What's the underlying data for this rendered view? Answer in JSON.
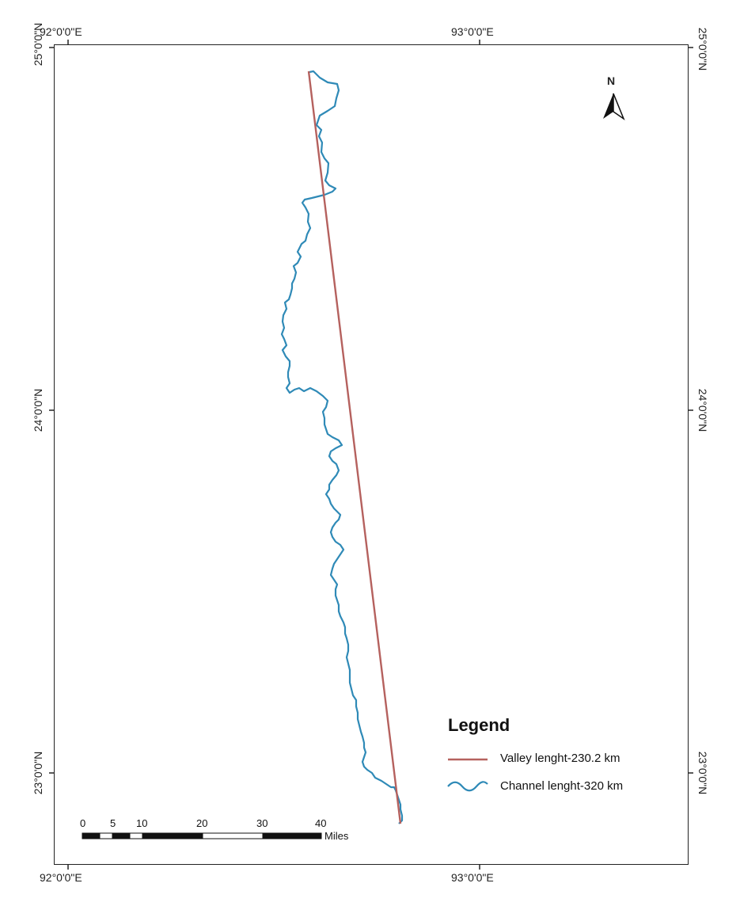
{
  "graticule": {
    "top_left": "92°0'0\"E",
    "top_right": "93°0'0\"E",
    "bottom_left": "92°0'0\"E",
    "bottom_right": "93°0'0\"E",
    "left_top": "25°0'0\"N",
    "left_mid": "24°0'0\"N",
    "left_bottom": "23°0'0\"N",
    "right_top": "25°0'0\"N",
    "right_mid": "24°0'0\"N",
    "right_bottom": "23°0'0\"N"
  },
  "north_arrow": {
    "label": "N",
    "icon": "north-arrow-icon"
  },
  "legend": {
    "title": "Legend",
    "items": [
      {
        "label": "Valley lenght-230.2 km",
        "color": "#b5615e",
        "symbol": "straight-line"
      },
      {
        "label": "Channel lenght-320 km",
        "color": "#2f8ab7",
        "symbol": "wavy-line"
      }
    ]
  },
  "scale_bar": {
    "ticks": [
      "0",
      "5",
      "10",
      "20",
      "30",
      "40"
    ],
    "unit": "Miles"
  }
}
